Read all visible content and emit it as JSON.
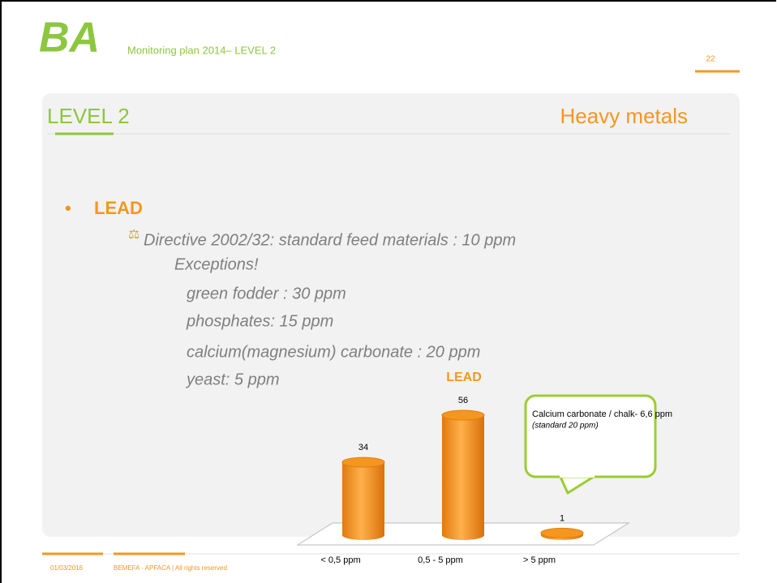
{
  "header": {
    "logo": "BA",
    "title": "Monitoring plan 2014– LEVEL 2",
    "page": "22"
  },
  "slide": {
    "title": "LEVEL 2",
    "topic": "Heavy metals",
    "bullet": "LEAD",
    "directive": "Directive 2002/32: standard feed materials : 10 ppm",
    "exceptions": "Exceptions!",
    "items": [
      "green fodder : 30 ppm",
      "phosphates: 15 ppm",
      "calcium(magnesium) carbonate : 20 ppm",
      "yeast: 5 ppm"
    ]
  },
  "chart_data": {
    "type": "bar",
    "title": "LEAD",
    "categories": [
      "< 0,5 ppm",
      "0,5 - 5 ppm",
      "> 5 ppm"
    ],
    "values": [
      34,
      56,
      1
    ],
    "color": "#f5961e",
    "callout": [
      "Calcium carbonate / chalk- 6,6 ppm",
      "(standard 20 ppm)"
    ]
  },
  "footer": {
    "date": "01/03/2016",
    "text": "BEMEFA - APFACA | All rights reserved"
  }
}
